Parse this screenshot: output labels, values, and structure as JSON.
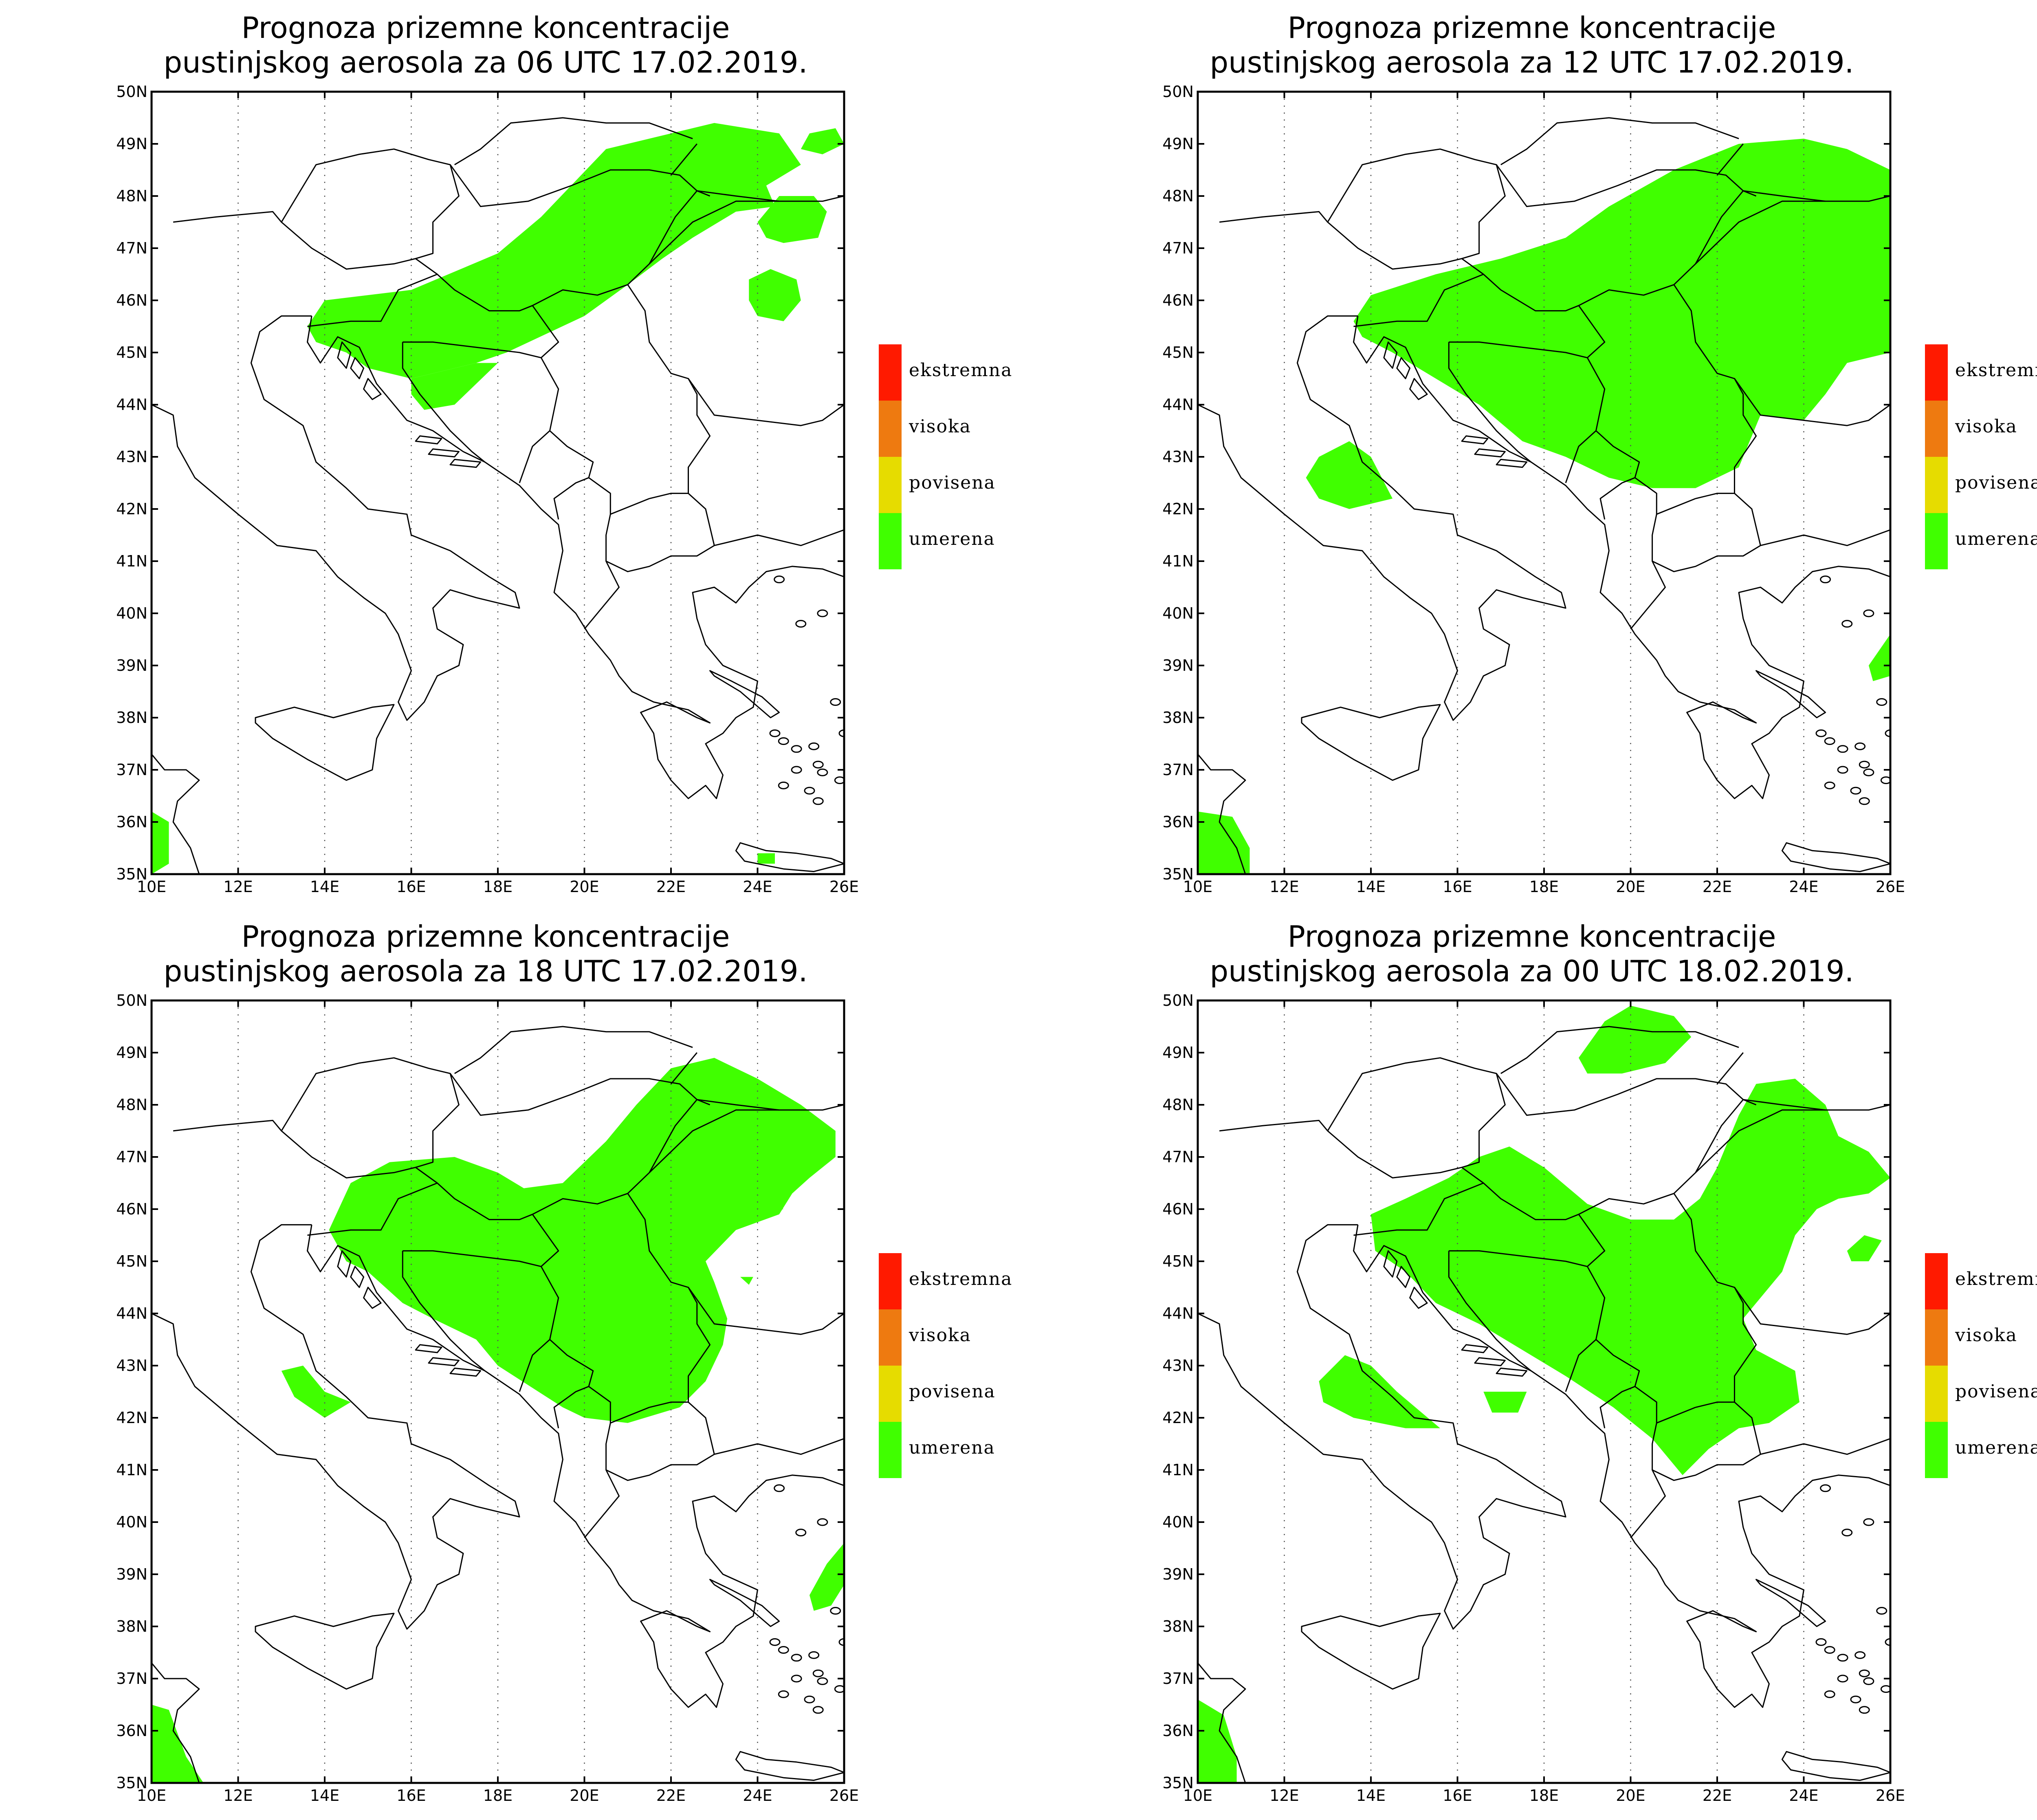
{
  "colors": {
    "background": "#ffffff",
    "frame": "#000000",
    "grid": "#555555",
    "coastline": "#000000",
    "aerosol_fill": "#40ff00"
  },
  "lon_ticks": [
    "10E",
    "12E",
    "14E",
    "16E",
    "18E",
    "20E",
    "22E",
    "24E",
    "26E"
  ],
  "lat_ticks": [
    "35N",
    "36N",
    "37N",
    "38N",
    "39N",
    "40N",
    "41N",
    "42N",
    "43N",
    "44N",
    "45N",
    "46N",
    "47N",
    "48N",
    "49N",
    "50N"
  ],
  "legend": [
    {
      "label": "ekstremna",
      "color": "#ff1a00"
    },
    {
      "label": "visoka",
      "color": "#ee7a10"
    },
    {
      "label": "povisena",
      "color": "#e6dc00"
    },
    {
      "label": "umerena",
      "color": "#40ff00"
    }
  ],
  "panels": [
    {
      "title_line1": "Prognoza prizemne koncentracije",
      "title_line2": "pustinjskog aerosola za 06 UTC 17.02.2019.",
      "valid_time": "06 UTC 17.02.2019",
      "concentration_level": "umerena",
      "areas": [
        [
          [
            13.6,
            45.5
          ],
          [
            14.0,
            46.0
          ],
          [
            16.0,
            46.2
          ],
          [
            18.0,
            46.9
          ],
          [
            19.0,
            47.6
          ],
          [
            20.5,
            48.9
          ],
          [
            22.0,
            49.2
          ],
          [
            23.0,
            49.4
          ],
          [
            24.5,
            49.2
          ],
          [
            25.0,
            48.6
          ],
          [
            24.2,
            48.2
          ],
          [
            24.4,
            47.8
          ],
          [
            23.5,
            47.7
          ],
          [
            22.5,
            47.2
          ],
          [
            21.8,
            46.8
          ],
          [
            21.0,
            46.3
          ],
          [
            20.0,
            45.7
          ],
          [
            18.2,
            45.0
          ],
          [
            17.5,
            44.8
          ],
          [
            16.0,
            44.5
          ],
          [
            15.0,
            44.7
          ],
          [
            14.5,
            45.0
          ],
          [
            13.8,
            45.2
          ]
        ],
        [
          [
            16.0,
            44.5
          ],
          [
            17.5,
            44.8
          ],
          [
            18.0,
            44.8
          ],
          [
            17.0,
            44.0
          ],
          [
            16.3,
            43.9
          ],
          [
            16.0,
            44.2
          ]
        ],
        [
          [
            24.0,
            47.5
          ],
          [
            24.5,
            48.0
          ],
          [
            25.3,
            48.0
          ],
          [
            25.6,
            47.7
          ],
          [
            25.4,
            47.2
          ],
          [
            24.6,
            47.1
          ],
          [
            24.2,
            47.2
          ]
        ],
        [
          [
            23.8,
            46.4
          ],
          [
            24.3,
            46.6
          ],
          [
            24.9,
            46.4
          ],
          [
            25.0,
            46.0
          ],
          [
            24.6,
            45.6
          ],
          [
            24.0,
            45.7
          ],
          [
            23.8,
            46.0
          ]
        ],
        [
          [
            25.2,
            49.2
          ],
          [
            25.8,
            49.3
          ],
          [
            26.0,
            49.0
          ],
          [
            25.5,
            48.8
          ],
          [
            25.0,
            48.9
          ]
        ],
        [
          [
            10.0,
            36.2
          ],
          [
            10.4,
            36.0
          ],
          [
            10.4,
            35.2
          ],
          [
            10.0,
            35.0
          ]
        ],
        [
          [
            24.0,
            35.4
          ],
          [
            24.4,
            35.4
          ],
          [
            24.4,
            35.2
          ],
          [
            24.0,
            35.2
          ]
        ]
      ]
    },
    {
      "title_line1": "Prognoza prizemne koncentracije",
      "title_line2": "pustinjskog aerosola za 12 UTC 17.02.2019.",
      "valid_time": "12 UTC 17.02.2019",
      "concentration_level": "umerena",
      "areas": [
        [
          [
            13.6,
            45.6
          ],
          [
            14.0,
            46.1
          ],
          [
            15.5,
            46.5
          ],
          [
            17.0,
            46.8
          ],
          [
            18.5,
            47.2
          ],
          [
            19.5,
            47.8
          ],
          [
            21.0,
            48.5
          ],
          [
            22.5,
            49.0
          ],
          [
            24.0,
            49.1
          ],
          [
            25.0,
            48.9
          ],
          [
            26.0,
            48.5
          ],
          [
            26.0,
            45.0
          ],
          [
            25.0,
            44.8
          ],
          [
            24.5,
            44.2
          ],
          [
            24.0,
            43.7
          ],
          [
            23.0,
            43.8
          ],
          [
            22.5,
            42.8
          ],
          [
            21.5,
            42.4
          ],
          [
            20.5,
            42.4
          ],
          [
            19.5,
            42.6
          ],
          [
            18.5,
            43.0
          ],
          [
            17.5,
            43.3
          ],
          [
            16.5,
            44.0
          ],
          [
            15.5,
            44.5
          ],
          [
            14.5,
            45.0
          ],
          [
            13.8,
            45.3
          ]
        ],
        [
          [
            12.5,
            42.6
          ],
          [
            12.8,
            43.0
          ],
          [
            13.5,
            43.3
          ],
          [
            14.0,
            43.0
          ],
          [
            14.5,
            42.2
          ],
          [
            13.5,
            42.0
          ],
          [
            12.8,
            42.2
          ]
        ],
        [
          [
            25.5,
            39.0
          ],
          [
            26.0,
            39.6
          ],
          [
            26.0,
            38.8
          ],
          [
            25.6,
            38.7
          ]
        ],
        [
          [
            10.0,
            36.2
          ],
          [
            10.8,
            36.1
          ],
          [
            11.2,
            35.5
          ],
          [
            11.2,
            35.0
          ],
          [
            10.0,
            35.0
          ]
        ]
      ]
    },
    {
      "title_line1": "Prognoza prizemne koncentracije",
      "title_line2": "pustinjskog aerosola za 18 UTC 17.02.2019.",
      "valid_time": "18 UTC 17.02.2019",
      "concentration_level": "umerena",
      "areas": [
        [
          [
            14.1,
            45.6
          ],
          [
            14.6,
            46.5
          ],
          [
            15.5,
            46.9
          ],
          [
            17.0,
            47.0
          ],
          [
            18.0,
            46.7
          ],
          [
            18.6,
            46.4
          ],
          [
            19.5,
            46.5
          ],
          [
            20.5,
            47.3
          ],
          [
            21.2,
            48.0
          ],
          [
            22.0,
            48.7
          ],
          [
            23.0,
            48.9
          ],
          [
            24.0,
            48.5
          ],
          [
            25.0,
            48.0
          ],
          [
            25.8,
            47.5
          ],
          [
            25.8,
            47.0
          ],
          [
            25.2,
            46.6
          ],
          [
            24.8,
            46.3
          ],
          [
            24.5,
            45.9
          ],
          [
            23.5,
            45.6
          ],
          [
            22.8,
            45.0
          ],
          [
            23.0,
            44.6
          ],
          [
            23.3,
            43.9
          ],
          [
            23.2,
            43.4
          ],
          [
            22.8,
            42.7
          ],
          [
            22.2,
            42.2
          ],
          [
            21.0,
            41.9
          ],
          [
            20.0,
            42.0
          ],
          [
            19.5,
            42.2
          ],
          [
            18.0,
            43.0
          ],
          [
            17.5,
            43.5
          ],
          [
            16.5,
            43.9
          ],
          [
            15.8,
            44.2
          ],
          [
            15.0,
            44.8
          ],
          [
            14.5,
            45.0
          ]
        ],
        [
          [
            23.5,
            46.1
          ],
          [
            24.2,
            46.2
          ],
          [
            24.6,
            46.0
          ],
          [
            23.8,
            45.9
          ]
        ],
        [
          [
            13.0,
            42.9
          ],
          [
            13.5,
            43.0
          ],
          [
            14.0,
            42.5
          ],
          [
            14.6,
            42.3
          ],
          [
            14.0,
            42.0
          ],
          [
            13.3,
            42.4
          ]
        ],
        [
          [
            25.2,
            38.6
          ],
          [
            25.6,
            39.2
          ],
          [
            26.0,
            39.6
          ],
          [
            26.0,
            38.8
          ],
          [
            25.7,
            38.4
          ],
          [
            25.3,
            38.3
          ]
        ],
        [
          [
            10.0,
            36.5
          ],
          [
            10.4,
            36.4
          ],
          [
            10.8,
            35.5
          ],
          [
            11.2,
            35.0
          ],
          [
            10.0,
            35.0
          ]
        ],
        [
          [
            23.6,
            44.7
          ],
          [
            23.9,
            44.7
          ],
          [
            23.8,
            44.55
          ]
        ]
      ]
    },
    {
      "title_line1": "Prognoza prizemne koncentracije",
      "title_line2": "pustinjskog aerosola za 00 UTC 18.02.2019.",
      "valid_time": "00 UTC 18.02.2019",
      "concentration_level": "umerena",
      "areas": [
        [
          [
            14.0,
            45.9
          ],
          [
            14.8,
            46.2
          ],
          [
            15.8,
            46.6
          ],
          [
            16.5,
            47.0
          ],
          [
            17.2,
            47.2
          ],
          [
            18.0,
            46.8
          ],
          [
            19.0,
            46.1
          ],
          [
            20.0,
            45.8
          ],
          [
            21.0,
            45.8
          ],
          [
            21.6,
            46.2
          ],
          [
            22.0,
            46.8
          ],
          [
            22.5,
            47.8
          ],
          [
            22.9,
            48.4
          ],
          [
            23.8,
            48.5
          ],
          [
            24.5,
            48.0
          ],
          [
            24.8,
            47.4
          ],
          [
            25.5,
            47.1
          ],
          [
            26.0,
            46.6
          ],
          [
            25.5,
            46.3
          ],
          [
            24.8,
            46.2
          ],
          [
            24.3,
            46.0
          ],
          [
            23.8,
            45.5
          ],
          [
            23.5,
            44.8
          ],
          [
            23.0,
            44.3
          ],
          [
            22.6,
            43.9
          ],
          [
            22.9,
            43.3
          ],
          [
            23.8,
            42.9
          ],
          [
            23.9,
            42.3
          ],
          [
            23.2,
            41.9
          ],
          [
            22.5,
            41.8
          ],
          [
            21.8,
            41.4
          ],
          [
            21.2,
            40.9
          ],
          [
            20.5,
            41.6
          ],
          [
            19.6,
            42.2
          ],
          [
            18.5,
            42.8
          ],
          [
            17.5,
            43.3
          ],
          [
            16.5,
            43.8
          ],
          [
            15.5,
            44.2
          ],
          [
            14.8,
            44.8
          ],
          [
            14.1,
            45.2
          ]
        ],
        [
          [
            18.8,
            48.9
          ],
          [
            19.4,
            49.6
          ],
          [
            20.0,
            49.9
          ],
          [
            21.0,
            49.7
          ],
          [
            21.4,
            49.3
          ],
          [
            20.8,
            48.8
          ],
          [
            19.8,
            48.6
          ],
          [
            19.0,
            48.6
          ]
        ],
        [
          [
            12.8,
            42.7
          ],
          [
            13.4,
            43.2
          ],
          [
            14.0,
            43.0
          ],
          [
            14.6,
            42.5
          ],
          [
            15.6,
            41.8
          ],
          [
            14.8,
            41.8
          ],
          [
            13.6,
            42.0
          ],
          [
            12.9,
            42.3
          ]
        ],
        [
          [
            25.0,
            45.2
          ],
          [
            25.4,
            45.5
          ],
          [
            25.8,
            45.4
          ],
          [
            25.5,
            45.0
          ],
          [
            25.1,
            45.0
          ]
        ],
        [
          [
            16.6,
            42.5
          ],
          [
            17.6,
            42.5
          ],
          [
            17.4,
            42.1
          ],
          [
            16.8,
            42.1
          ]
        ],
        [
          [
            10.0,
            36.6
          ],
          [
            10.6,
            36.3
          ],
          [
            10.9,
            35.5
          ],
          [
            10.9,
            35.0
          ],
          [
            10.0,
            35.0
          ]
        ]
      ]
    }
  ]
}
